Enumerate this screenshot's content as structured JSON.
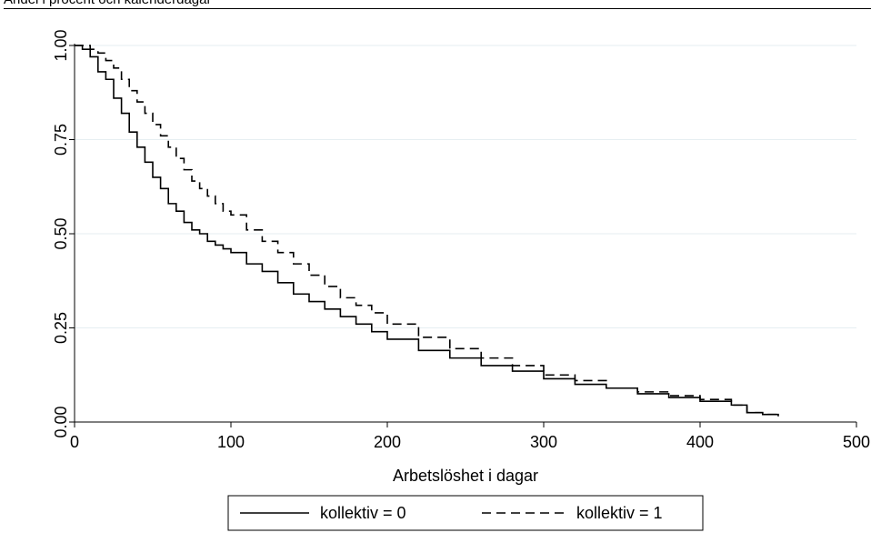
{
  "header": {
    "note": "Andel i procent och kalenderdagar"
  },
  "chart_data": {
    "type": "line",
    "title": "",
    "xlabel": "Arbetslöshet i dagar",
    "ylabel": "",
    "xlim": [
      0,
      500
    ],
    "ylim": [
      0,
      1
    ],
    "x_ticks": [
      0,
      100,
      200,
      300,
      400,
      500
    ],
    "x_tick_labels": [
      "0",
      "100",
      "200",
      "300",
      "400",
      "500"
    ],
    "y_ticks": [
      0,
      0.25,
      0.5,
      0.75,
      1.0
    ],
    "y_tick_labels": [
      "0.00",
      "0.25",
      "0.50",
      "0.75",
      "1.00"
    ],
    "grid": "horizontal",
    "legend_position": "bottom",
    "series": [
      {
        "name": "kollektiv = 0",
        "style": "solid",
        "x": [
          0,
          5,
          10,
          15,
          20,
          25,
          30,
          35,
          40,
          45,
          50,
          55,
          60,
          65,
          70,
          75,
          80,
          85,
          90,
          95,
          100,
          110,
          120,
          130,
          140,
          150,
          160,
          170,
          180,
          190,
          200,
          220,
          240,
          260,
          280,
          300,
          320,
          340,
          360,
          380,
          400,
          420,
          430,
          440,
          450
        ],
        "y": [
          1.0,
          0.99,
          0.97,
          0.93,
          0.91,
          0.86,
          0.82,
          0.77,
          0.73,
          0.69,
          0.65,
          0.62,
          0.58,
          0.56,
          0.53,
          0.51,
          0.5,
          0.48,
          0.47,
          0.46,
          0.45,
          0.42,
          0.4,
          0.37,
          0.34,
          0.32,
          0.3,
          0.28,
          0.26,
          0.24,
          0.22,
          0.19,
          0.17,
          0.15,
          0.135,
          0.115,
          0.1,
          0.09,
          0.075,
          0.065,
          0.055,
          0.045,
          0.025,
          0.02,
          0.015
        ]
      },
      {
        "name": "kollektiv = 1",
        "style": "dashed",
        "x": [
          0,
          5,
          10,
          15,
          20,
          25,
          30,
          35,
          40,
          45,
          50,
          55,
          60,
          65,
          70,
          75,
          80,
          85,
          90,
          95,
          100,
          110,
          120,
          130,
          140,
          150,
          160,
          170,
          180,
          190,
          200,
          220,
          240,
          260,
          280,
          300,
          320,
          340,
          360,
          380,
          400,
          420,
          430,
          440,
          450
        ],
        "y": [
          1.0,
          1.0,
          0.99,
          0.98,
          0.96,
          0.94,
          0.91,
          0.88,
          0.85,
          0.82,
          0.79,
          0.76,
          0.73,
          0.7,
          0.67,
          0.64,
          0.62,
          0.6,
          0.58,
          0.56,
          0.55,
          0.51,
          0.48,
          0.45,
          0.42,
          0.39,
          0.36,
          0.33,
          0.31,
          0.29,
          0.26,
          0.225,
          0.195,
          0.17,
          0.15,
          0.125,
          0.11,
          0.09,
          0.08,
          0.07,
          0.06,
          0.045,
          0.025,
          0.02,
          0.015
        ]
      }
    ]
  }
}
